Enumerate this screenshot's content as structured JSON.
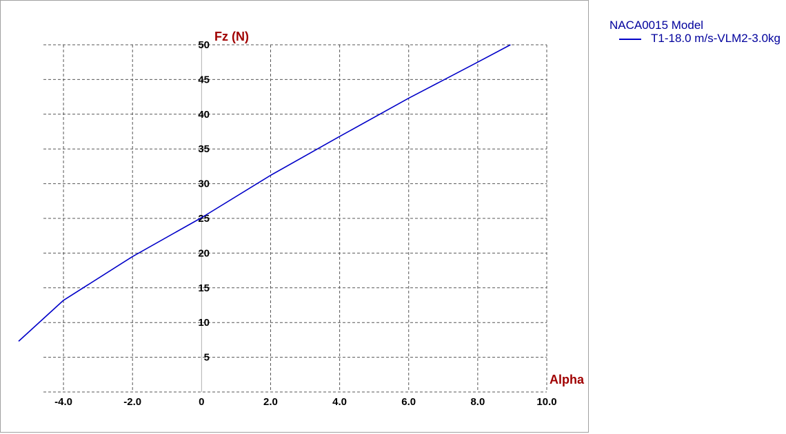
{
  "chart_data": {
    "type": "line",
    "xlabel": "Alpha",
    "ylabel": "Fz (N)",
    "xlim": [
      -5.3,
      10.0
    ],
    "ylim": [
      0,
      50
    ],
    "x_ticks": [
      "-4.0",
      "-2.0",
      "0",
      "2.0",
      "4.0",
      "6.0",
      "8.0",
      "10.0"
    ],
    "y_ticks": [
      "5",
      "10",
      "15",
      "20",
      "25",
      "30",
      "35",
      "40",
      "45",
      "50"
    ],
    "grid": true,
    "legend_position": "right",
    "legend_title": "NACA0015 Model",
    "series": [
      {
        "name": "T1-18.0 m/s-VLM2-3.0kg",
        "color": "#0000c8",
        "x": [
          -5.3,
          -4.0,
          -2.0,
          0.0,
          2.0,
          4.0,
          6.0,
          8.0,
          8.95
        ],
        "y": [
          7.3,
          13.2,
          19.5,
          25.1,
          31.2,
          36.8,
          42.3,
          47.5,
          50.0
        ]
      }
    ]
  }
}
